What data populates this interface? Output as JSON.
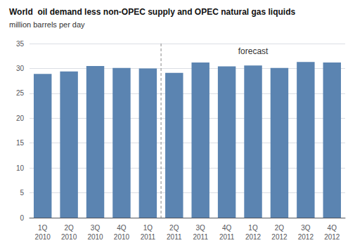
{
  "chart_data": {
    "type": "bar",
    "title": "World  oil demand less non-OPEC supply and OPEC natural gas liquids",
    "subtitle": "million barrels per day",
    "categories": [
      "1Q\n2010",
      "2Q\n2010",
      "3Q\n2010",
      "4Q\n2010",
      "1Q\n2011",
      "2Q\n2011",
      "3Q\n2011",
      "4Q\n2011",
      "1Q\n2012",
      "2Q\n2012",
      "3Q\n2012",
      "4Q\n2012"
    ],
    "values": [
      28.9,
      29.4,
      30.5,
      30.1,
      30.0,
      29.1,
      31.2,
      30.4,
      30.6,
      30.1,
      31.3,
      31.2
    ],
    "color": "#5b84b1",
    "ylim": [
      0,
      35
    ],
    "yticks": [
      0,
      5,
      10,
      15,
      20,
      25,
      30,
      35
    ],
    "grid": true,
    "annotations": [
      {
        "text": "forecast",
        "from": "2Q\n2011"
      }
    ]
  }
}
